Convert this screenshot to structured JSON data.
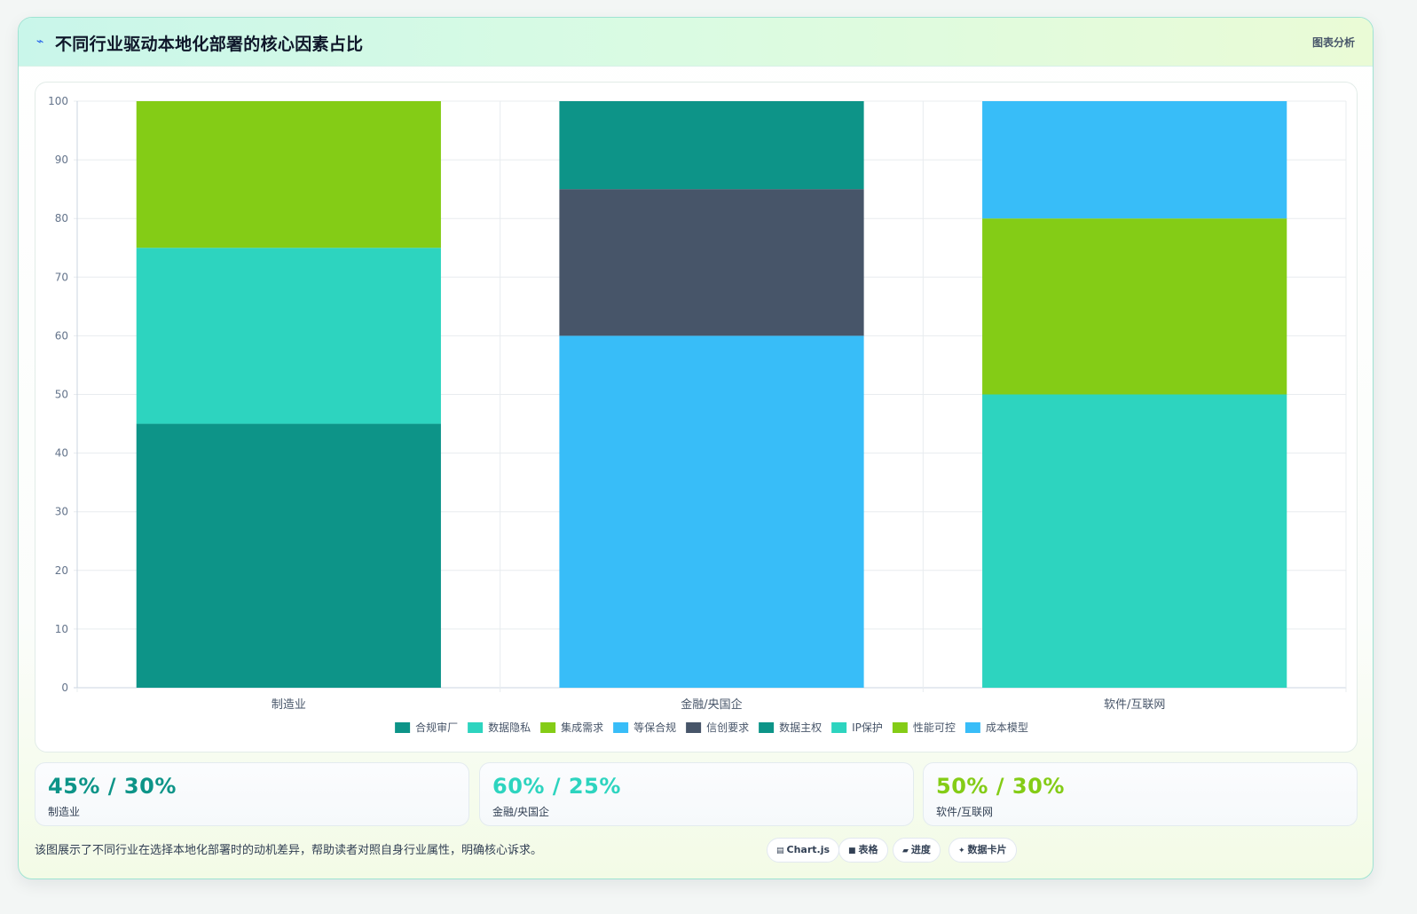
{
  "header": {
    "icon": "lightning-icon",
    "title": "不同行业驱动本地化部署的核心因素占比",
    "badge": "图表分析"
  },
  "chart_data": {
    "type": "bar",
    "stacked": true,
    "categories": [
      "制造业",
      "金融/央国企",
      "软件/互联网"
    ],
    "ylim": [
      0,
      100
    ],
    "yticks": [
      0,
      10,
      20,
      30,
      40,
      50,
      60,
      70,
      80,
      90,
      100
    ],
    "grid": true,
    "legend_position": "bottom",
    "series": [
      {
        "name": "合规审厂",
        "color": "#0d9488",
        "values": [
          45,
          0,
          0
        ]
      },
      {
        "name": "数据隐私",
        "color": "#2dd4bf",
        "values": [
          30,
          0,
          0
        ]
      },
      {
        "name": "集成需求",
        "color": "#84cc16",
        "values": [
          25,
          0,
          0
        ]
      },
      {
        "name": "等保合规",
        "color": "#38bdf8",
        "values": [
          0,
          60,
          0
        ]
      },
      {
        "name": "信创要求",
        "color": "#475569",
        "values": [
          0,
          25,
          0
        ]
      },
      {
        "name": "数据主权",
        "color": "#0d9488",
        "values": [
          0,
          15,
          0
        ]
      },
      {
        "name": "IP保护",
        "color": "#2dd4bf",
        "values": [
          0,
          0,
          50
        ]
      },
      {
        "name": "性能可控",
        "color": "#84cc16",
        "values": [
          0,
          0,
          30
        ]
      },
      {
        "name": "成本模型",
        "color": "#38bdf8",
        "values": [
          0,
          0,
          20
        ]
      }
    ]
  },
  "stats": [
    {
      "value": "45% / 30%",
      "label": "制造业",
      "color": "#0d9488"
    },
    {
      "value": "60% / 25%",
      "label": "金融/央国企",
      "color": "#2dd4bf"
    },
    {
      "value": "50% / 30%",
      "label": "软件/互联网",
      "color": "#84cc16"
    }
  ],
  "note": "该图展示了不同行业在选择本地化部署时的动机差异，帮助读者对照自身行业属性，明确核心诉求。",
  "chips": [
    {
      "icon": "▤",
      "label": "Chart.js"
    },
    {
      "icon": "■",
      "label": "表格"
    },
    {
      "icon": "▰",
      "label": "进度"
    },
    {
      "icon": "✦",
      "label": "数据卡片"
    }
  ]
}
